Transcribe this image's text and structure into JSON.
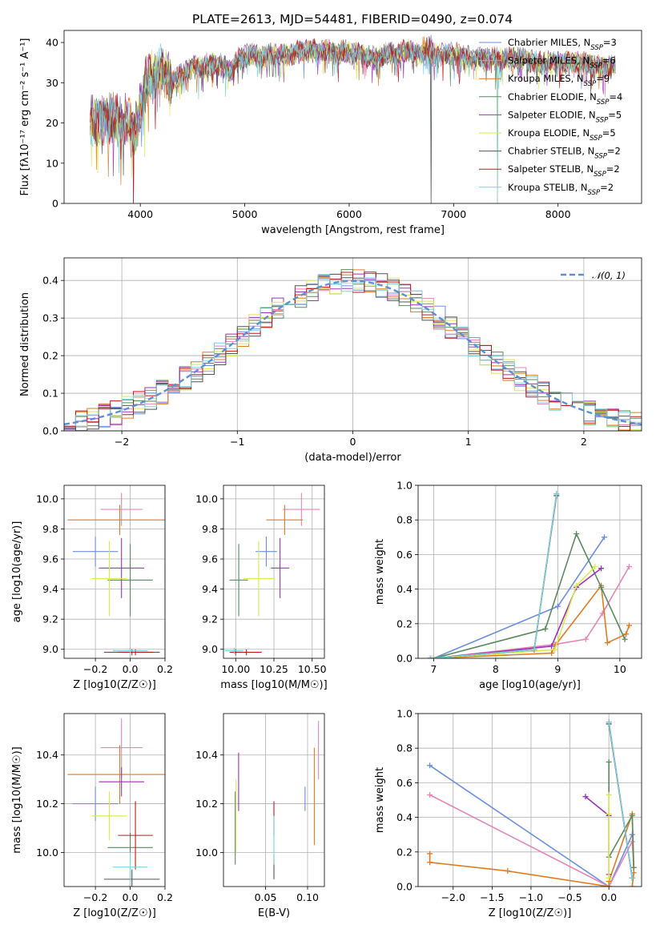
{
  "figure": {
    "title": "PLATE=2613, MJD=54481, FIBERID=0490, z=0.074"
  },
  "colors": {
    "Chabrier MILES": "#6a8fe0",
    "Salpeter MILES": "#e486b8",
    "Kroupa MILES": "#e07b20",
    "Chabrier ELODIE": "#5a8a5e",
    "Salpeter ELODIE": "#9d32b8",
    "Kroupa ELODIE": "#d8ea50",
    "Chabrier STELIB": "#555555",
    "Salpeter STELIB": "#c01818",
    "Kroupa STELIB": "#79d2e0"
  },
  "chart_data": [
    {
      "id": "spectrum",
      "type": "line",
      "xlabel": "wavelength [Angstrom, rest frame]",
      "ylabel": "Flux [fλ10⁻¹⁷ erg cm⁻² s⁻¹ A⁻¹]",
      "xlim": [
        3270,
        8800
      ],
      "ylim": [
        0,
        43
      ],
      "xticks": [
        4000,
        5000,
        6000,
        7000,
        8000
      ],
      "yticks": [
        0,
        10,
        20,
        30,
        40
      ],
      "legend_position": "upper-right",
      "envelope": {
        "x": [
          3550,
          3650,
          3720,
          3800,
          3880,
          3935,
          3970,
          4050,
          4120,
          4200,
          4300,
          4400,
          4500,
          4600,
          4700,
          4800,
          4860,
          4950,
          5050,
          5180,
          5250,
          5350,
          5450,
          5550,
          5650,
          5750,
          5850,
          5890,
          5950,
          6050,
          6150,
          6250,
          6350,
          6450,
          6563,
          6650,
          6750,
          6850,
          6950,
          7050,
          7200,
          7350,
          7500,
          7650,
          7800,
          8000,
          8200,
          8400,
          8600
        ],
        "y": [
          21,
          20,
          22,
          20,
          21,
          17,
          20,
          30,
          32,
          33,
          30,
          32,
          34,
          34,
          35,
          34,
          33,
          36,
          37,
          36,
          37,
          37,
          37,
          38,
          38,
          38,
          38,
          37,
          38,
          37,
          37,
          36,
          37,
          37,
          38,
          37,
          37,
          37,
          37,
          37,
          36,
          36,
          36,
          36,
          35,
          35,
          35,
          34,
          34
        ]
      },
      "dips": [
        {
          "x": 3933,
          "y": 0
        },
        {
          "x": 6785,
          "y": 0
        },
        {
          "x": 7420,
          "y": 0
        }
      ],
      "series": [
        {
          "name": "Chabrier MILES",
          "n_ssp": "3"
        },
        {
          "name": "Salpeter MILES",
          "n_ssp": "6"
        },
        {
          "name": "Kroupa MILES",
          "n_ssp": "9"
        },
        {
          "name": "Chabrier ELODIE",
          "n_ssp": "4"
        },
        {
          "name": "Salpeter ELODIE",
          "n_ssp": "5"
        },
        {
          "name": "Kroupa ELODIE",
          "n_ssp": "5"
        },
        {
          "name": "Chabrier STELIB",
          "n_ssp": "2"
        },
        {
          "name": "Salpeter STELIB",
          "n_ssp": "2"
        },
        {
          "name": "Kroupa STELIB",
          "n_ssp": "2"
        }
      ]
    },
    {
      "id": "residuals",
      "type": "histogram",
      "xlabel": "(data-model)/error",
      "ylabel": "Normed distribution",
      "xlim": [
        -2.5,
        2.5
      ],
      "ylim": [
        0,
        0.46
      ],
      "xticks": [
        -2,
        -1,
        0,
        1,
        2
      ],
      "yticks": [
        0.0,
        0.1,
        0.2,
        0.3,
        0.4
      ],
      "grid": true,
      "bin_width": 0.1,
      "normal_curve": {
        "name": "N(0,1)",
        "mean": 0,
        "sigma": 1
      },
      "legend_position": "upper-right"
    },
    {
      "id": "age_vs_Z",
      "type": "errorbar",
      "xlabel": "Z [log10(Z/Z☉)]",
      "ylabel": "age  [log10(age/yr)]",
      "xlim": [
        -0.38,
        0.2
      ],
      "ylim": [
        8.94,
        10.09
      ],
      "xticks": [
        -0.2,
        0.0,
        0.2
      ],
      "yticks": [
        9.0,
        9.2,
        9.4,
        9.6,
        9.8,
        10.0
      ],
      "grid": true,
      "points": [
        {
          "series": "Chabrier MILES",
          "x": -0.2,
          "xerr": 0.13,
          "y": 9.65,
          "yerr": 0.1
        },
        {
          "series": "Salpeter MILES",
          "x": -0.05,
          "xerr": 0.12,
          "y": 9.93,
          "yerr": 0.11
        },
        {
          "series": "Kroupa MILES",
          "x": -0.06,
          "xerr": 0.3,
          "y": 9.86,
          "yerr": 0.1
        },
        {
          "series": "Chabrier ELODIE",
          "x": 0.0,
          "xerr": 0.13,
          "y": 9.46,
          "yerr": 0.24
        },
        {
          "series": "Salpeter ELODIE",
          "x": -0.05,
          "xerr": 0.13,
          "y": 9.54,
          "yerr": 0.2
        },
        {
          "series": "Kroupa ELODIE",
          "x": -0.12,
          "xerr": 0.1,
          "y": 9.47,
          "yerr": 0.25
        },
        {
          "series": "Chabrier STELIB",
          "x": 0.01,
          "xerr": 0.16,
          "y": 8.98,
          "yerr": 0.02
        },
        {
          "series": "Salpeter STELIB",
          "x": 0.03,
          "xerr": 0.1,
          "y": 8.98,
          "yerr": 0.02
        },
        {
          "series": "Kroupa STELIB",
          "x": 0.0,
          "xerr": 0.1,
          "y": 8.99,
          "yerr": 0.02
        }
      ]
    },
    {
      "id": "age_vs_mass",
      "type": "errorbar",
      "xlabel": "mass [log10(M/M☉)]",
      "ylabel": "",
      "xlim": [
        9.92,
        10.58
      ],
      "ylim": [
        8.94,
        10.09
      ],
      "xticks": [
        10.0,
        10.25,
        10.5
      ],
      "yticks": [
        9.0,
        9.2,
        9.4,
        9.6,
        9.8,
        10.0
      ],
      "grid": true,
      "points": [
        {
          "series": "Chabrier MILES",
          "x": 10.2,
          "xerr": 0.07,
          "y": 9.65,
          "yerr": 0.1
        },
        {
          "series": "Salpeter MILES",
          "x": 10.43,
          "xerr": 0.12,
          "y": 9.93,
          "yerr": 0.11
        },
        {
          "series": "Kroupa MILES",
          "x": 10.32,
          "xerr": 0.12,
          "y": 9.86,
          "yerr": 0.1
        },
        {
          "series": "Chabrier ELODIE",
          "x": 10.02,
          "xerr": 0.06,
          "y": 9.46,
          "yerr": 0.24
        },
        {
          "series": "Salpeter ELODIE",
          "x": 10.29,
          "xerr": 0.06,
          "y": 9.54,
          "yerr": 0.2
        },
        {
          "series": "Kroupa ELODIE",
          "x": 10.15,
          "xerr": 0.1,
          "y": 9.47,
          "yerr": 0.25
        },
        {
          "series": "Chabrier STELIB",
          "x": 10.0,
          "xerr": 0.04,
          "y": 8.98,
          "yerr": 0.02
        },
        {
          "series": "Salpeter STELIB",
          "x": 10.07,
          "xerr": 0.1,
          "y": 8.98,
          "yerr": 0.02
        },
        {
          "series": "Kroupa STELIB",
          "x": 9.99,
          "xerr": 0.06,
          "y": 8.99,
          "yerr": 0.02
        }
      ]
    },
    {
      "id": "weight_vs_age",
      "type": "line",
      "xlabel": "age  [log10(age/yr)]",
      "ylabel": "mass weight",
      "xlim": [
        6.75,
        10.35
      ],
      "ylim": [
        0.0,
        1.0
      ],
      "xticks": [
        7,
        8,
        9,
        10
      ],
      "yticks": [
        0.0,
        0.2,
        0.4,
        0.6,
        0.8,
        1.0
      ],
      "grid": true,
      "series": [
        {
          "name": "Chabrier MILES",
          "x": [
            7.0,
            9.0,
            9.75
          ],
          "y": [
            0.0,
            0.3,
            0.7
          ]
        },
        {
          "name": "Salpeter MILES",
          "x": [
            7.0,
            8.95,
            9.45,
            9.72,
            10.15
          ],
          "y": [
            0.0,
            0.08,
            0.11,
            0.26,
            0.53
          ]
        },
        {
          "name": "Kroupa MILES",
          "x": [
            7.0,
            8.9,
            8.97,
            9.7,
            9.8,
            10.1,
            10.15
          ],
          "y": [
            0.0,
            0.03,
            0.08,
            0.42,
            0.09,
            0.14,
            0.19
          ]
        },
        {
          "name": "Chabrier ELODIE",
          "x": [
            7.0,
            8.8,
            9.3,
            9.7,
            10.08
          ],
          "y": [
            0.0,
            0.17,
            0.72,
            0.41,
            0.11
          ]
        },
        {
          "name": "Salpeter ELODIE",
          "x": [
            7.0,
            8.9,
            9.3,
            9.7
          ],
          "y": [
            0.0,
            0.07,
            0.41,
            0.52
          ]
        },
        {
          "name": "Kroupa ELODIE",
          "x": [
            7.0,
            8.95,
            9.3,
            9.6
          ],
          "y": [
            0.0,
            0.05,
            0.42,
            0.53
          ]
        },
        {
          "name": "Chabrier STELIB",
          "x": [
            6.95,
            8.62,
            8.98
          ],
          "y": [
            0.0,
            0.05,
            0.94
          ]
        },
        {
          "name": "Salpeter STELIB",
          "x": [
            6.95,
            8.62,
            8.98
          ],
          "y": [
            0.0,
            0.05,
            0.95
          ]
        },
        {
          "name": "Kroupa STELIB",
          "x": [
            6.95,
            8.62,
            8.98
          ],
          "y": [
            0.0,
            0.05,
            0.95
          ]
        }
      ]
    },
    {
      "id": "mass_vs_Z",
      "type": "errorbar",
      "xlabel": "Z [log10(Z/Z☉)]",
      "ylabel": "mass [log10(M/M☉)]",
      "xlim": [
        -0.38,
        0.2
      ],
      "ylim": [
        9.86,
        10.57
      ],
      "xticks": [
        -0.2,
        0.0,
        0.2
      ],
      "yticks": [
        10.0,
        10.2,
        10.4
      ],
      "grid": true,
      "points": [
        {
          "series": "Chabrier MILES",
          "x": -0.2,
          "xerr": 0.13,
          "y": 10.2,
          "yerr": 0.07
        },
        {
          "series": "Salpeter MILES",
          "x": -0.05,
          "xerr": 0.12,
          "y": 10.43,
          "yerr": 0.12
        },
        {
          "series": "Kroupa MILES",
          "x": -0.06,
          "xerr": 0.3,
          "y": 10.32,
          "yerr": 0.12
        },
        {
          "series": "Chabrier ELODIE",
          "x": 0.0,
          "xerr": 0.13,
          "y": 10.02,
          "yerr": 0.06
        },
        {
          "series": "Salpeter ELODIE",
          "x": -0.05,
          "xerr": 0.13,
          "y": 10.29,
          "yerr": 0.06
        },
        {
          "series": "Kroupa ELODIE",
          "x": -0.12,
          "xerr": 0.1,
          "y": 10.15,
          "yerr": 0.1
        },
        {
          "series": "Chabrier STELIB",
          "x": 0.01,
          "xerr": 0.16,
          "y": 9.89,
          "yerr": 0.04
        },
        {
          "series": "Salpeter STELIB",
          "x": 0.03,
          "xerr": 0.1,
          "y": 10.07,
          "yerr": 0.14
        },
        {
          "series": "Kroupa STELIB",
          "x": 0.0,
          "xerr": 0.1,
          "y": 9.94,
          "yerr": 0.06
        }
      ]
    },
    {
      "id": "mass_vs_ebv",
      "type": "errorbar",
      "xlabel": "E(B-V)",
      "ylabel": "",
      "xlim": [
        0.0,
        0.12
      ],
      "ylim": [
        9.86,
        10.57
      ],
      "xticks": [
        0.05,
        0.1
      ],
      "yticks": [
        10.0,
        10.2,
        10.4
      ],
      "grid": true,
      "points": [
        {
          "series": "Chabrier MILES",
          "x": 0.097,
          "xerr": 0,
          "y": 10.22,
          "yerr": 0.05
        },
        {
          "series": "Salpeter MILES",
          "x": 0.113,
          "xerr": 0,
          "y": 10.42,
          "yerr": 0.12
        },
        {
          "series": "Kroupa MILES",
          "x": 0.108,
          "xerr": 0,
          "y": 10.23,
          "yerr": 0.2
        },
        {
          "series": "Chabrier ELODIE",
          "x": 0.014,
          "xerr": 0,
          "y": 10.1,
          "yerr": 0.15
        },
        {
          "series": "Salpeter ELODIE",
          "x": 0.018,
          "xerr": 0,
          "y": 10.29,
          "yerr": 0.12
        },
        {
          "series": "Kroupa ELODIE",
          "x": 0.015,
          "xerr": 0,
          "y": 10.15,
          "yerr": 0.15
        },
        {
          "series": "Chabrier STELIB",
          "x": 0.06,
          "xerr": 0,
          "y": 9.94,
          "yerr": 0.05
        },
        {
          "series": "Salpeter STELIB",
          "x": 0.06,
          "xerr": 0,
          "y": 10.14,
          "yerr": 0.07
        },
        {
          "series": "Kroupa STELIB",
          "x": 0.06,
          "xerr": 0,
          "y": 10.05,
          "yerr": 0.1
        }
      ]
    },
    {
      "id": "weight_vs_Z",
      "type": "line",
      "xlabel": "Z [log10(Z/Z☉)]",
      "ylabel": "mass weight",
      "xlim": [
        -2.45,
        0.42
      ],
      "ylim": [
        0.0,
        1.0
      ],
      "xticks": [
        -2.0,
        -1.5,
        -1.0,
        -0.5,
        0.0
      ],
      "yticks": [
        0.0,
        0.2,
        0.4,
        0.6,
        0.8,
        1.0
      ],
      "grid": true,
      "series": [
        {
          "name": "Chabrier MILES",
          "x": [
            -2.3,
            0.0,
            0.3
          ],
          "y": [
            0.7,
            0.0,
            0.3
          ]
        },
        {
          "name": "Salpeter MILES",
          "x": [
            -2.3,
            0.0,
            0.3,
            0.32
          ],
          "y": [
            0.53,
            0.0,
            0.26,
            0.11
          ]
        },
        {
          "name": "Kroupa MILES",
          "x": [
            -2.3,
            -2.3,
            -1.3,
            0.0,
            0.0,
            0.3,
            0.32,
            0.3
          ],
          "y": [
            0.19,
            0.14,
            0.09,
            0.0,
            0.03,
            0.42,
            0.08,
            0.0
          ]
        },
        {
          "name": "Chabrier ELODIE",
          "x": [
            0.0,
            0.0,
            0.3,
            0.32
          ],
          "y": [
            0.72,
            0.17,
            0.41,
            0.11
          ]
        },
        {
          "name": "Salpeter ELODIE",
          "x": [
            -0.3,
            0.0,
            0.0
          ],
          "y": [
            0.52,
            0.41,
            0.07
          ]
        },
        {
          "name": "Kroupa ELODIE",
          "x": [
            0.0,
            0.0,
            0.0
          ],
          "y": [
            0.53,
            0.42,
            0.05
          ]
        },
        {
          "name": "Chabrier STELIB",
          "x": [
            0.0,
            0.3
          ],
          "y": [
            0.94,
            0.05
          ]
        },
        {
          "name": "Salpeter STELIB",
          "x": [
            0.0,
            0.3
          ],
          "y": [
            0.95,
            0.05
          ]
        },
        {
          "name": "Kroupa STELIB",
          "x": [
            0.0,
            0.3
          ],
          "y": [
            0.95,
            0.05
          ]
        }
      ]
    }
  ]
}
